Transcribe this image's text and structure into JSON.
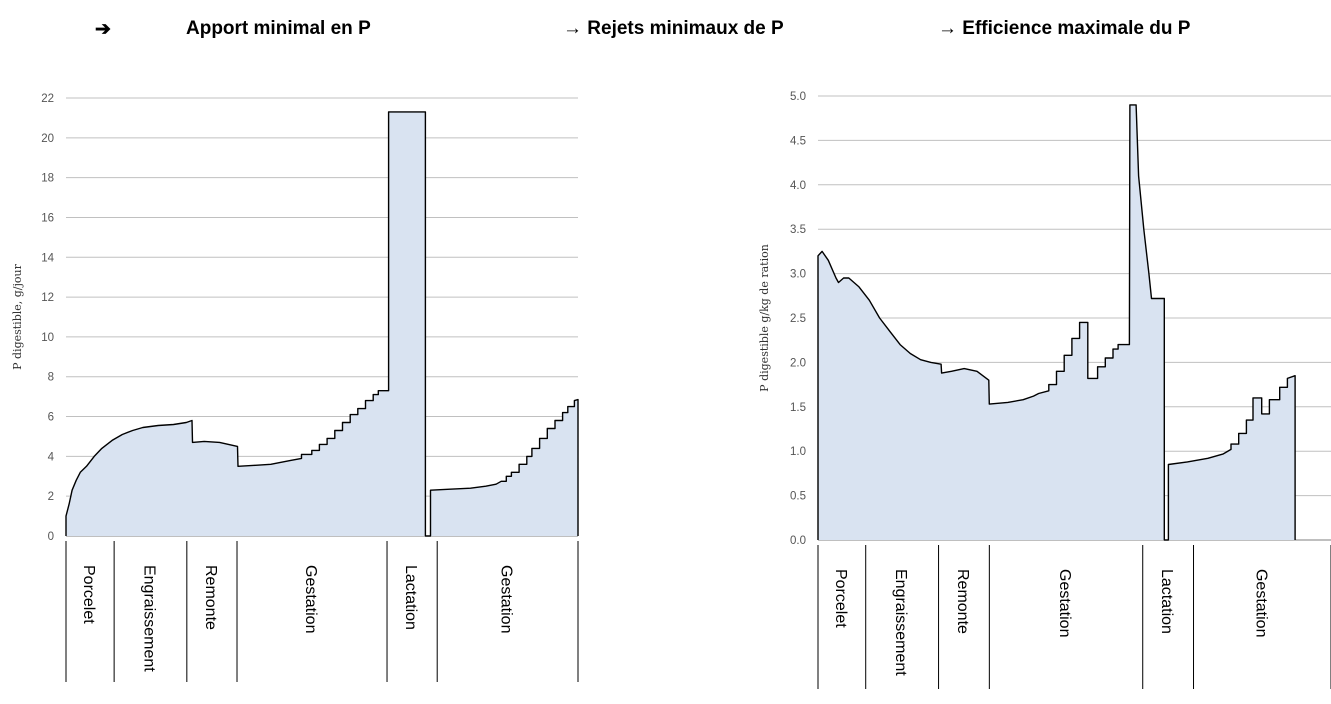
{
  "headers": {
    "arrow": "➔",
    "col1": "Apport minimal en P",
    "col2": "→ Rejets minimaux de P",
    "col3": "→ Efficience maximale du P"
  },
  "style": {
    "fill": "#d9e3f1",
    "stroke": "#000000",
    "grid": "#c0c0c0",
    "axis": "#7f7f7f"
  },
  "chart_data": [
    {
      "type": "area",
      "ylabel": "P digestible, g/jour",
      "xlabel": "",
      "ylim": [
        0,
        22
      ],
      "yticks": [
        0,
        2,
        4,
        6,
        8,
        10,
        12,
        14,
        16,
        18,
        20,
        22
      ],
      "grid": true,
      "x_range": [
        0,
        100
      ],
      "segments": [
        {
          "label": "Porcelet",
          "start": 0,
          "end": 9.4
        },
        {
          "label": "Engraissement",
          "start": 9.4,
          "end": 23.6
        },
        {
          "label": "Remonte",
          "start": 23.6,
          "end": 33.4
        },
        {
          "label": "Gestation",
          "start": 33.4,
          "end": 62.7
        },
        {
          "label": "Lactation",
          "start": 62.7,
          "end": 72.5
        },
        {
          "label": "Gestation",
          "start": 72.5,
          "end": 100
        }
      ],
      "points": [
        [
          0,
          0
        ],
        [
          0,
          1.0
        ],
        [
          0.6,
          1.6
        ],
        [
          1.2,
          2.3
        ],
        [
          2,
          2.8
        ],
        [
          2.8,
          3.2
        ],
        [
          4,
          3.5
        ],
        [
          5.5,
          4.0
        ],
        [
          7,
          4.4
        ],
        [
          9,
          4.8
        ],
        [
          11,
          5.1
        ],
        [
          13,
          5.3
        ],
        [
          15,
          5.45
        ],
        [
          18,
          5.55
        ],
        [
          21,
          5.6
        ],
        [
          23.5,
          5.7
        ],
        [
          24.6,
          5.8
        ],
        [
          24.7,
          4.7
        ],
        [
          27,
          4.75
        ],
        [
          30,
          4.7
        ],
        [
          33.5,
          4.5
        ],
        [
          33.6,
          3.5
        ],
        [
          37,
          3.55
        ],
        [
          40,
          3.6
        ],
        [
          42,
          3.7
        ],
        [
          44,
          3.8
        ],
        [
          46,
          3.9
        ],
        [
          46,
          4.1
        ],
        [
          48,
          4.1
        ],
        [
          48,
          4.3
        ],
        [
          49.5,
          4.3
        ],
        [
          49.5,
          4.6
        ],
        [
          51,
          4.6
        ],
        [
          51,
          4.9
        ],
        [
          52.5,
          4.9
        ],
        [
          52.5,
          5.3
        ],
        [
          54,
          5.3
        ],
        [
          54,
          5.7
        ],
        [
          55.5,
          5.7
        ],
        [
          55.5,
          6.1
        ],
        [
          57,
          6.1
        ],
        [
          57,
          6.4
        ],
        [
          58.5,
          6.4
        ],
        [
          58.5,
          6.8
        ],
        [
          60,
          6.8
        ],
        [
          60,
          7.1
        ],
        [
          61,
          7.1
        ],
        [
          61,
          7.3
        ],
        [
          63,
          7.3
        ],
        [
          63,
          21.3
        ],
        [
          70.2,
          21.3
        ],
        [
          70.2,
          0
        ],
        [
          71.2,
          0
        ],
        [
          71.2,
          2.3
        ],
        [
          75,
          2.35
        ],
        [
          79,
          2.4
        ],
        [
          82,
          2.5
        ],
        [
          84,
          2.6
        ],
        [
          85,
          2.75
        ],
        [
          86,
          2.75
        ],
        [
          86,
          3.0
        ],
        [
          87,
          3.0
        ],
        [
          87,
          3.2
        ],
        [
          88.5,
          3.2
        ],
        [
          88.5,
          3.6
        ],
        [
          90,
          3.6
        ],
        [
          90,
          4.0
        ],
        [
          91,
          4.0
        ],
        [
          91,
          4.4
        ],
        [
          92.5,
          4.4
        ],
        [
          92.5,
          4.9
        ],
        [
          94,
          4.9
        ],
        [
          94,
          5.4
        ],
        [
          95.5,
          5.4
        ],
        [
          95.5,
          5.8
        ],
        [
          97,
          5.8
        ],
        [
          97,
          6.2
        ],
        [
          98,
          6.2
        ],
        [
          98,
          6.5
        ],
        [
          99.3,
          6.5
        ],
        [
          99.3,
          6.8
        ],
        [
          100,
          6.85
        ],
        [
          100,
          0
        ]
      ]
    },
    {
      "type": "area",
      "ylabel": "P digestible g/kg de ration",
      "xlabel": "",
      "ylim": [
        0,
        5
      ],
      "yticks": [
        "0.0",
        "0.5",
        "1.0",
        "1.5",
        "2.0",
        "2.5",
        "3.0",
        "3.5",
        "4.0",
        "4.5",
        "5.0"
      ],
      "grid": true,
      "x_range": [
        0,
        100
      ],
      "segments": [
        {
          "label": "Porcelet",
          "start": 0,
          "end": 9.3
        },
        {
          "label": "Engraissement",
          "start": 9.3,
          "end": 23.5
        },
        {
          "label": "Remonte",
          "start": 23.5,
          "end": 33.4
        },
        {
          "label": "Gestation",
          "start": 33.4,
          "end": 63.3
        },
        {
          "label": "Lactation",
          "start": 63.3,
          "end": 73.2
        },
        {
          "label": "Gestation",
          "start": 73.2,
          "end": 100
        }
      ],
      "points": [
        [
          0,
          0
        ],
        [
          0,
          3.2
        ],
        [
          0.8,
          3.25
        ],
        [
          2,
          3.15
        ],
        [
          3.5,
          2.95
        ],
        [
          4,
          2.9
        ],
        [
          5,
          2.95
        ],
        [
          6,
          2.95
        ],
        [
          8,
          2.85
        ],
        [
          10,
          2.7
        ],
        [
          12,
          2.5
        ],
        [
          14,
          2.35
        ],
        [
          16,
          2.2
        ],
        [
          18,
          2.1
        ],
        [
          20,
          2.03
        ],
        [
          22,
          2.0
        ],
        [
          24,
          1.98
        ],
        [
          24.1,
          1.88
        ],
        [
          26,
          1.9
        ],
        [
          28.5,
          1.93
        ],
        [
          31,
          1.9
        ],
        [
          33.3,
          1.8
        ],
        [
          33.4,
          1.53
        ],
        [
          37,
          1.55
        ],
        [
          40,
          1.58
        ],
        [
          42,
          1.62
        ],
        [
          43,
          1.65
        ],
        [
          45,
          1.68
        ],
        [
          45,
          1.75
        ],
        [
          46.5,
          1.75
        ],
        [
          46.5,
          1.9
        ],
        [
          48,
          1.9
        ],
        [
          48,
          2.08
        ],
        [
          49.5,
          2.08
        ],
        [
          49.5,
          2.27
        ],
        [
          51,
          2.27
        ],
        [
          51,
          2.45
        ],
        [
          52.6,
          2.45
        ],
        [
          52.6,
          1.82
        ],
        [
          54.5,
          1.82
        ],
        [
          54.5,
          1.95
        ],
        [
          56,
          1.95
        ],
        [
          56,
          2.05
        ],
        [
          57.5,
          2.05
        ],
        [
          57.5,
          2.15
        ],
        [
          58.5,
          2.15
        ],
        [
          58.5,
          2.2
        ],
        [
          60.7,
          2.2
        ],
        [
          60.8,
          4.9
        ],
        [
          62,
          4.9
        ],
        [
          62.5,
          4.1
        ],
        [
          63.5,
          3.5
        ],
        [
          64.5,
          3.0
        ],
        [
          65,
          2.72
        ],
        [
          67.5,
          2.72
        ],
        [
          67.5,
          0
        ],
        [
          68.3,
          0
        ],
        [
          68.3,
          0.85
        ],
        [
          72,
          0.88
        ],
        [
          76,
          0.92
        ],
        [
          79,
          0.97
        ],
        [
          80.5,
          1.02
        ],
        [
          80.5,
          1.08
        ],
        [
          82,
          1.08
        ],
        [
          82,
          1.2
        ],
        [
          83.5,
          1.2
        ],
        [
          83.5,
          1.35
        ],
        [
          84.8,
          1.35
        ],
        [
          84.8,
          1.6
        ],
        [
          86.5,
          1.6
        ],
        [
          86.5,
          1.42
        ],
        [
          88,
          1.42
        ],
        [
          88,
          1.58
        ],
        [
          90,
          1.58
        ],
        [
          90,
          1.72
        ],
        [
          91.5,
          1.72
        ],
        [
          91.5,
          1.82
        ],
        [
          93,
          1.85
        ],
        [
          93,
          0
        ]
      ]
    }
  ]
}
